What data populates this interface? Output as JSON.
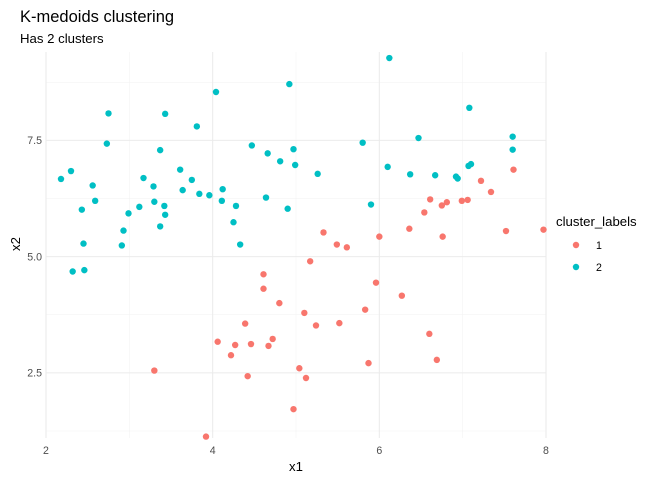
{
  "chart_data": {
    "type": "scatter",
    "title": "K-medoids clustering",
    "subtitle": "Has 2 clusters",
    "xlabel": "x1",
    "ylabel": "x2",
    "xlim": [
      2.0,
      8.0
    ],
    "ylim": [
      1.1,
      9.4
    ],
    "x_ticks": [
      2,
      4,
      6,
      8
    ],
    "x_tick_labels": [
      "2",
      "4",
      "6",
      "8"
    ],
    "y_ticks": [
      2.5,
      5.0,
      7.5
    ],
    "y_tick_labels": [
      "2.5",
      "5.0",
      "7.5"
    ],
    "grid": true,
    "legend": {
      "title": "cluster_labels",
      "position": "right"
    },
    "series": [
      {
        "name": "1",
        "color": "#F8766D",
        "points": [
          [
            3.3,
            2.55
          ],
          [
            3.92,
            1.13
          ],
          [
            4.06,
            3.17
          ],
          [
            4.22,
            2.88
          ],
          [
            4.27,
            3.1
          ],
          [
            4.39,
            3.56
          ],
          [
            4.42,
            2.43
          ],
          [
            4.46,
            3.12
          ],
          [
            4.61,
            4.62
          ],
          [
            4.61,
            4.31
          ],
          [
            4.67,
            3.08
          ],
          [
            4.72,
            3.23
          ],
          [
            4.8,
            4.0
          ],
          [
            4.97,
            1.72
          ],
          [
            5.04,
            2.6
          ],
          [
            5.1,
            3.79
          ],
          [
            5.12,
            2.39
          ],
          [
            5.17,
            4.9
          ],
          [
            5.24,
            3.52
          ],
          [
            5.33,
            5.52
          ],
          [
            5.49,
            5.26
          ],
          [
            5.52,
            3.57
          ],
          [
            5.61,
            5.2
          ],
          [
            5.83,
            3.86
          ],
          [
            5.87,
            2.71
          ],
          [
            5.96,
            4.44
          ],
          [
            6.0,
            5.43
          ],
          [
            6.27,
            4.16
          ],
          [
            6.36,
            5.6
          ],
          [
            6.54,
            5.95
          ],
          [
            6.6,
            3.34
          ],
          [
            6.61,
            6.23
          ],
          [
            6.69,
            2.78
          ],
          [
            6.75,
            6.1
          ],
          [
            6.76,
            5.43
          ],
          [
            6.81,
            6.17
          ],
          [
            6.99,
            6.2
          ],
          [
            7.06,
            6.22
          ],
          [
            7.22,
            6.63
          ],
          [
            7.34,
            6.39
          ],
          [
            7.52,
            5.55
          ],
          [
            7.61,
            6.87
          ],
          [
            7.97,
            5.58
          ]
        ]
      },
      {
        "name": "2",
        "color": "#00BFC4",
        "points": [
          [
            2.18,
            6.67
          ],
          [
            2.3,
            6.84
          ],
          [
            2.32,
            4.68
          ],
          [
            2.43,
            6.01
          ],
          [
            2.45,
            5.28
          ],
          [
            2.46,
            4.71
          ],
          [
            2.56,
            6.53
          ],
          [
            2.59,
            6.2
          ],
          [
            2.73,
            7.43
          ],
          [
            2.75,
            8.08
          ],
          [
            2.91,
            5.24
          ],
          [
            2.93,
            5.56
          ],
          [
            2.99,
            5.93
          ],
          [
            3.12,
            6.07
          ],
          [
            3.17,
            6.69
          ],
          [
            3.29,
            6.51
          ],
          [
            3.3,
            6.18
          ],
          [
            3.37,
            5.65
          ],
          [
            3.37,
            7.29
          ],
          [
            3.42,
            6.09
          ],
          [
            3.43,
            8.07
          ],
          [
            3.43,
            5.9
          ],
          [
            3.61,
            6.87
          ],
          [
            3.64,
            6.43
          ],
          [
            3.75,
            6.65
          ],
          [
            3.81,
            7.8
          ],
          [
            3.84,
            6.35
          ],
          [
            3.96,
            6.32
          ],
          [
            4.04,
            8.54
          ],
          [
            4.11,
            6.2
          ],
          [
            4.12,
            6.45
          ],
          [
            4.25,
            5.74
          ],
          [
            4.28,
            6.09
          ],
          [
            4.33,
            5.26
          ],
          [
            4.47,
            7.39
          ],
          [
            4.64,
            6.27
          ],
          [
            4.66,
            7.22
          ],
          [
            4.81,
            7.05
          ],
          [
            4.9,
            6.03
          ],
          [
            4.92,
            8.71
          ],
          [
            4.97,
            7.31
          ],
          [
            4.99,
            6.97
          ],
          [
            5.26,
            6.78
          ],
          [
            5.8,
            7.45
          ],
          [
            5.9,
            6.12
          ],
          [
            6.1,
            6.93
          ],
          [
            6.12,
            9.27
          ],
          [
            6.37,
            6.77
          ],
          [
            6.47,
            7.55
          ],
          [
            6.67,
            6.75
          ],
          [
            6.92,
            6.72
          ],
          [
            6.94,
            6.68
          ],
          [
            7.07,
            6.95
          ],
          [
            7.08,
            8.2
          ],
          [
            7.1,
            6.99
          ],
          [
            7.6,
            7.3
          ],
          [
            7.6,
            7.58
          ]
        ]
      }
    ]
  }
}
